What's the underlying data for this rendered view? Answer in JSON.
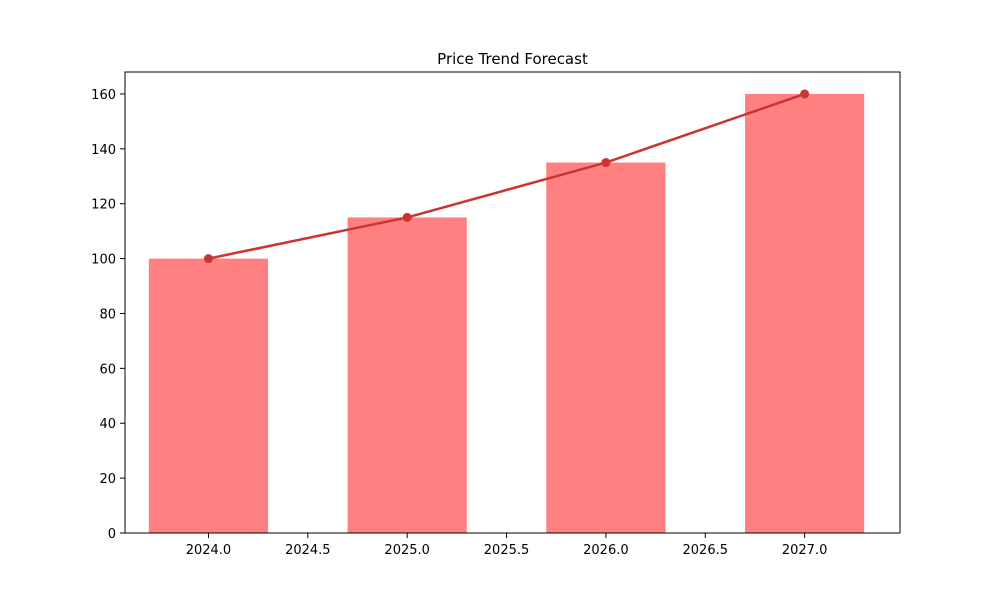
{
  "chart_data": {
    "type": "bar",
    "title": "Price Trend Forecast",
    "xlabel": "",
    "ylabel": "",
    "x": [
      2024.0,
      2025.0,
      2026.0,
      2027.0
    ],
    "series": [
      {
        "type": "bar",
        "values": [
          100,
          115,
          135,
          160
        ],
        "color": "#ff8080"
      },
      {
        "type": "line",
        "values": [
          100,
          115,
          135,
          160
        ],
        "color": "#cc3333",
        "marker": "circle"
      }
    ],
    "bar_width": 0.6,
    "xlim": [
      2023.58,
      2027.48
    ],
    "ylim": [
      0,
      168
    ],
    "x_ticks": [
      2024.0,
      2024.5,
      2025.0,
      2025.5,
      2026.0,
      2026.5,
      2027.0
    ],
    "x_tick_labels": [
      "2024.0",
      "2024.5",
      "2025.0",
      "2025.5",
      "2026.0",
      "2026.5",
      "2027.0"
    ],
    "y_ticks": [
      0,
      20,
      40,
      60,
      80,
      100,
      120,
      140,
      160
    ],
    "y_tick_labels": [
      "0",
      "20",
      "40",
      "60",
      "80",
      "100",
      "120",
      "140",
      "160"
    ],
    "grid": false,
    "legend": "none"
  }
}
